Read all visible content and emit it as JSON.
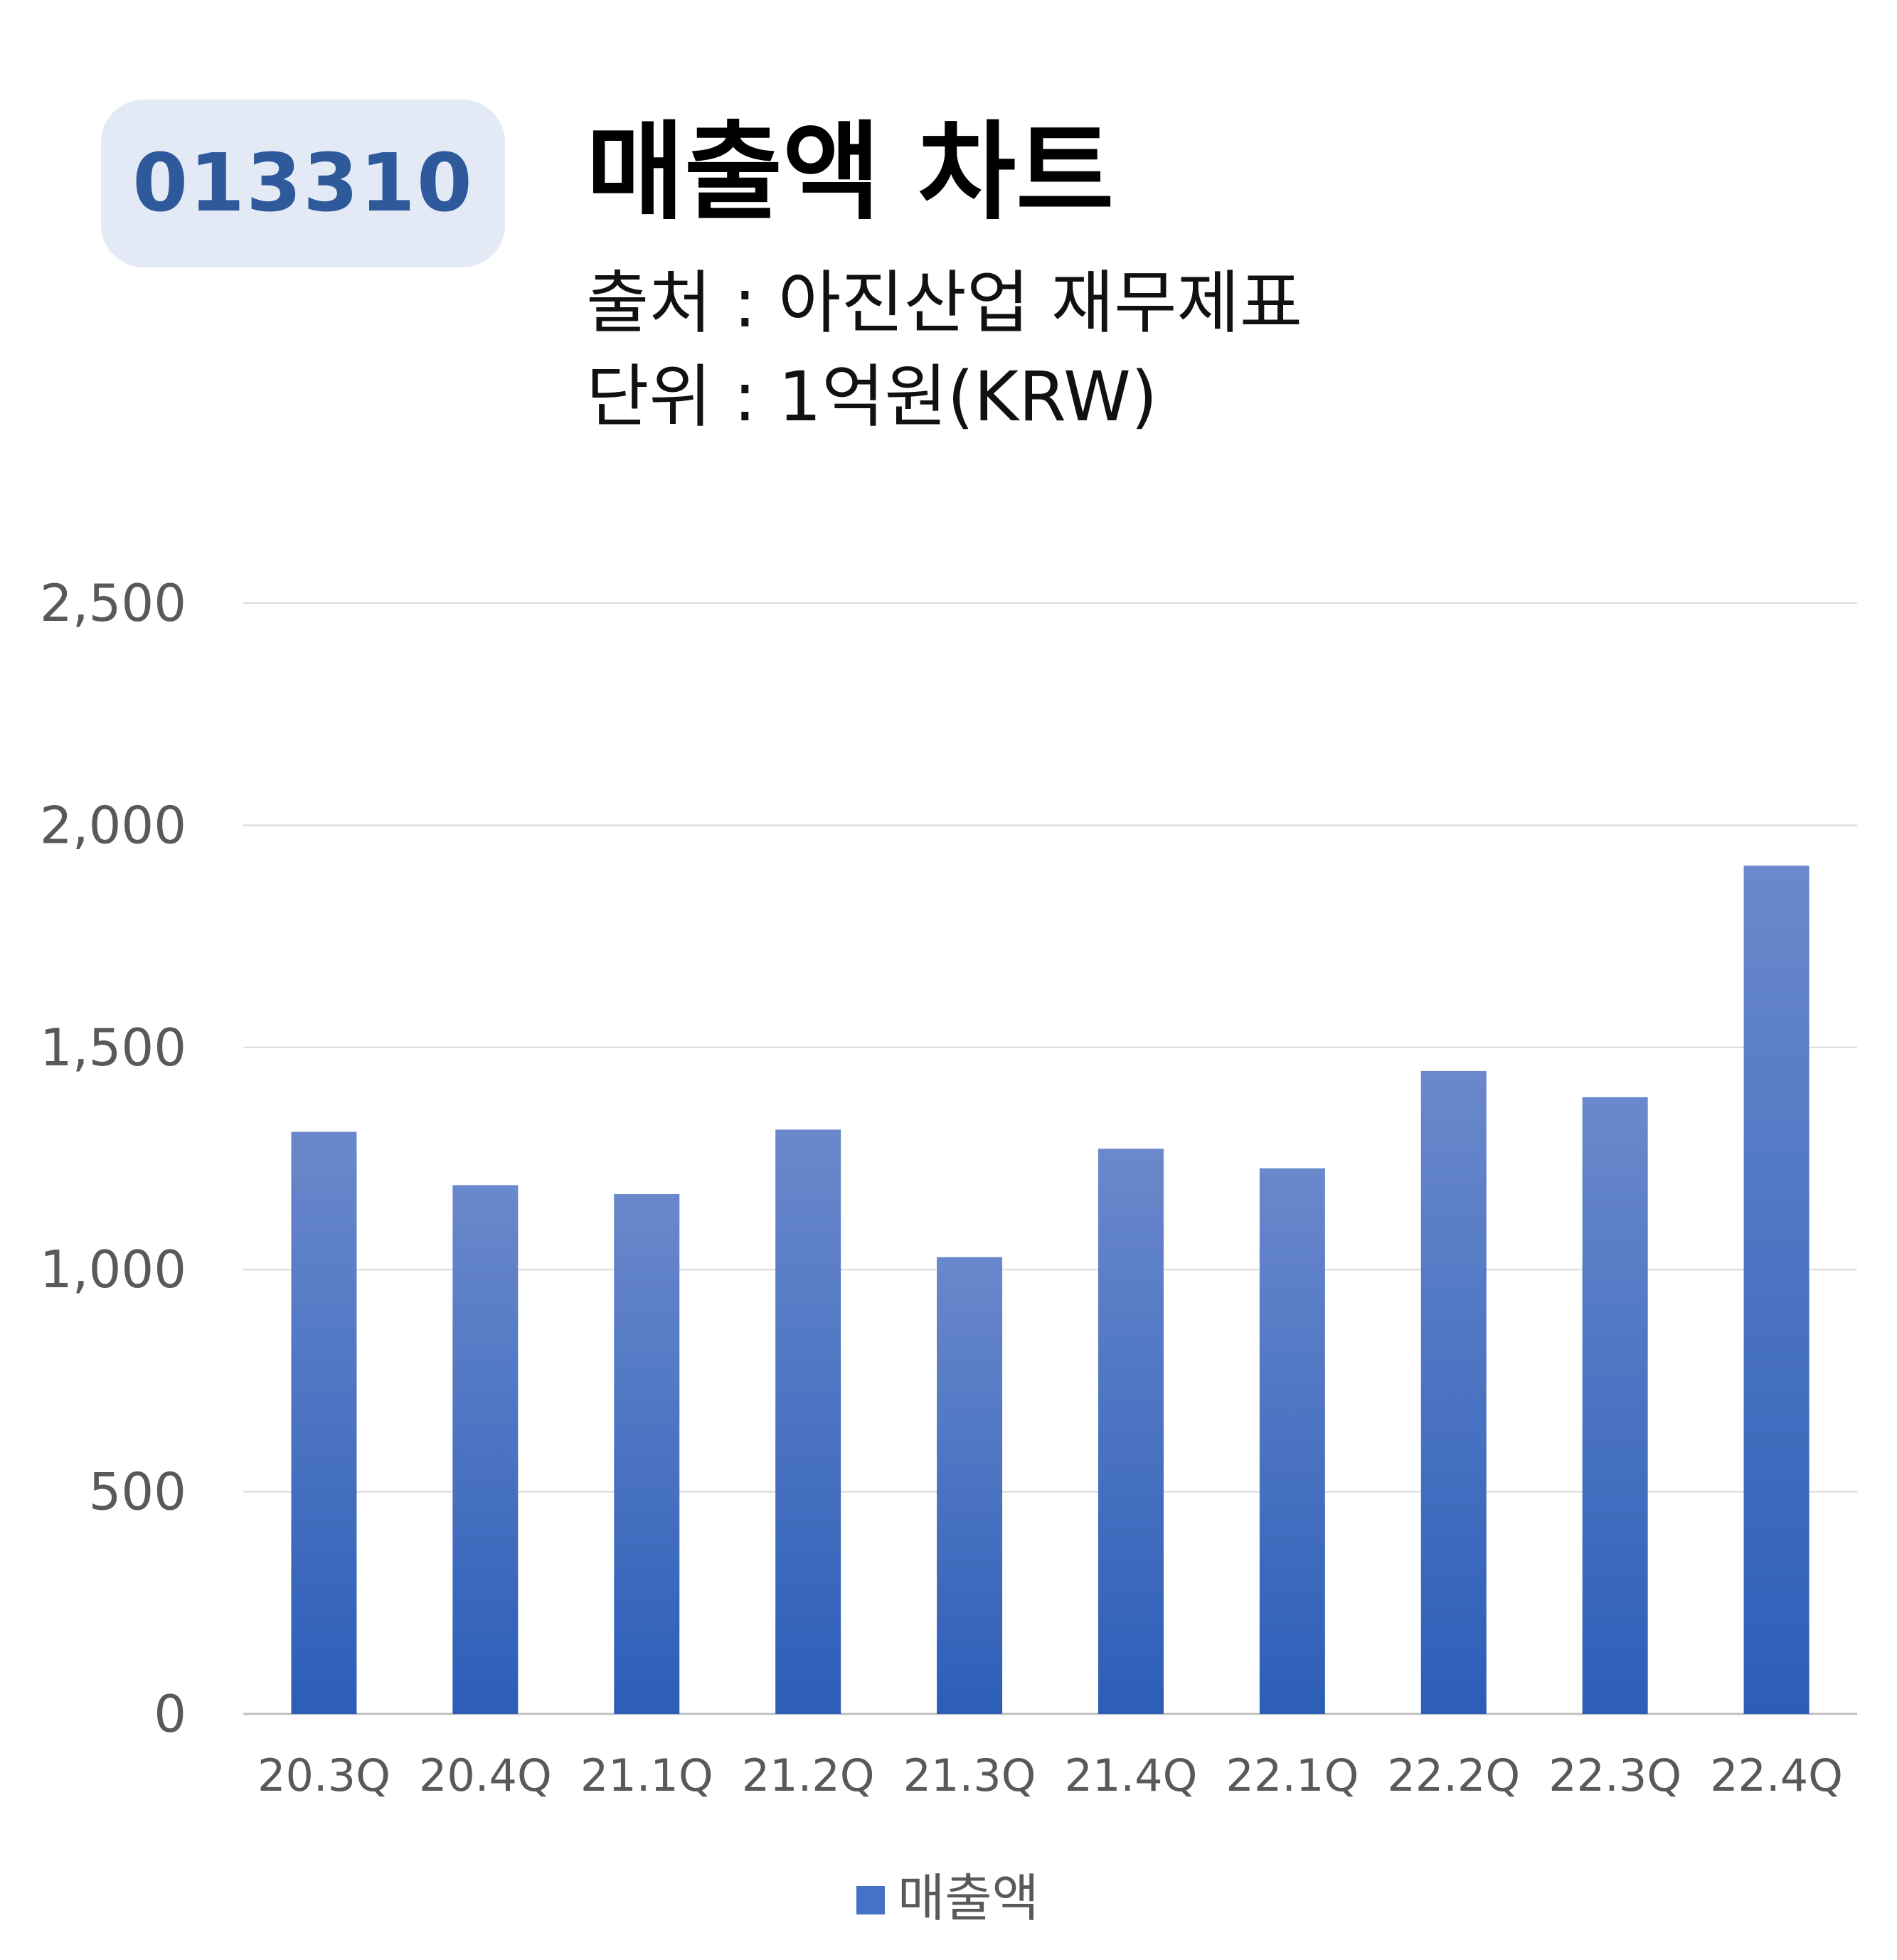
{
  "header": {
    "code": "013310",
    "title": "매출액 차트",
    "source": "출처 : 아진산업 재무제표",
    "unit": "단위 : 1억원(KRW)"
  },
  "colors": {
    "bar_top": "#6a88cc",
    "bar_bottom": "#2c5eb8",
    "grid": "#d9d9d9",
    "axis": "#bfbfbf",
    "legend_swatch": "#4472c4",
    "badge_bg": "#e3e9f5",
    "badge_text": "#2e5a9b"
  },
  "chart_data": {
    "type": "bar",
    "categories": [
      "20.3Q",
      "20.4Q",
      "21.1Q",
      "21.2Q",
      "21.3Q",
      "21.4Q",
      "22.1Q",
      "22.2Q",
      "22.3Q",
      "22.4Q"
    ],
    "series": [
      {
        "name": "매출액",
        "values": [
          1310,
          1190,
          1170,
          1315,
          1028,
          1272,
          1228,
          1447,
          1388,
          1909
        ]
      }
    ],
    "ylim": [
      0,
      2500
    ],
    "yticks": [
      0,
      500,
      1000,
      1500,
      2000,
      2500
    ],
    "ytick_labels": [
      "0",
      "500",
      "1,000",
      "1,500",
      "2,000",
      "2,500"
    ],
    "grid": true,
    "legend_position": "bottom"
  }
}
